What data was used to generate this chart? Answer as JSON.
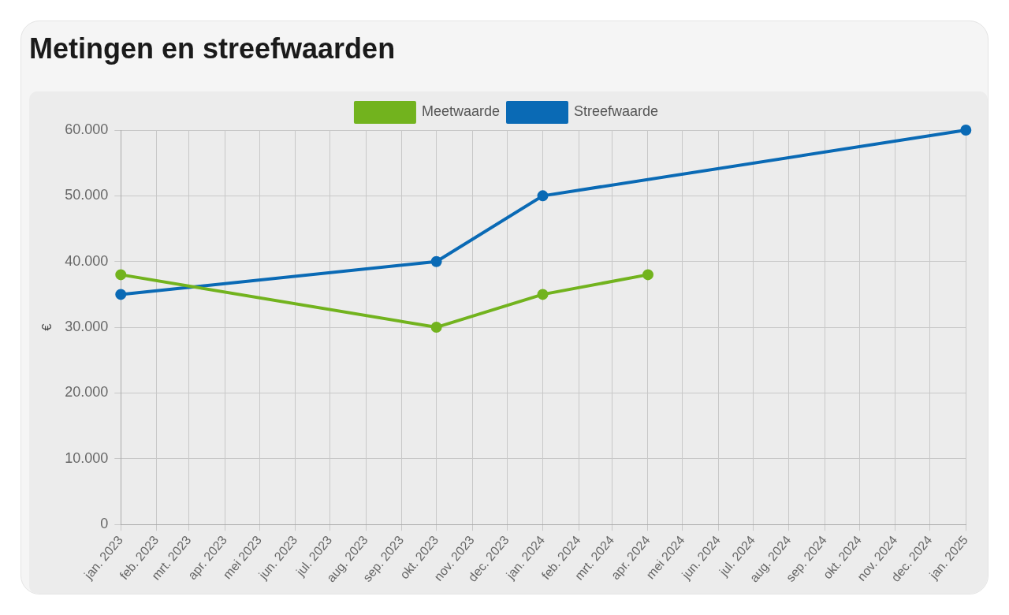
{
  "chart_data": {
    "type": "line",
    "title": "Metingen en streefwaarden",
    "ylabel": "€",
    "series": [
      {
        "name": "Meetwaarde",
        "color": "#72b31e",
        "x": [
          "2023-01",
          "2023-10",
          "2024-01",
          "2024-04"
        ],
        "values": [
          38000,
          30000,
          35000,
          38000
        ]
      },
      {
        "name": "Streefwaarde",
        "color": "#0a6ab5",
        "x": [
          "2023-01",
          "2023-10",
          "2024-01",
          "2025-01"
        ],
        "values": [
          35000,
          40000,
          50000,
          60000
        ]
      }
    ],
    "xlim": [
      "2023-01",
      "2025-01"
    ],
    "xticks": [
      {
        "value": "2023-01",
        "label": "jan. 2023"
      },
      {
        "value": "2023-02",
        "label": "feb. 2023"
      },
      {
        "value": "2023-03",
        "label": "mrt. 2023"
      },
      {
        "value": "2023-04",
        "label": "apr. 2023"
      },
      {
        "value": "2023-05",
        "label": "mei 2023"
      },
      {
        "value": "2023-06",
        "label": "jun. 2023"
      },
      {
        "value": "2023-07",
        "label": "jul. 2023"
      },
      {
        "value": "2023-08",
        "label": "aug. 2023"
      },
      {
        "value": "2023-09",
        "label": "sep. 2023"
      },
      {
        "value": "2023-10",
        "label": "okt. 2023"
      },
      {
        "value": "2023-11",
        "label": "nov. 2023"
      },
      {
        "value": "2023-12",
        "label": "dec. 2023"
      },
      {
        "value": "2024-01",
        "label": "jan. 2024"
      },
      {
        "value": "2024-02",
        "label": "feb. 2024"
      },
      {
        "value": "2024-03",
        "label": "mrt. 2024"
      },
      {
        "value": "2024-04",
        "label": "apr. 2024"
      },
      {
        "value": "2024-05",
        "label": "mei 2024"
      },
      {
        "value": "2024-06",
        "label": "jun. 2024"
      },
      {
        "value": "2024-07",
        "label": "jul. 2024"
      },
      {
        "value": "2024-08",
        "label": "aug. 2024"
      },
      {
        "value": "2024-09",
        "label": "sep. 2024"
      },
      {
        "value": "2024-10",
        "label": "okt. 2024"
      },
      {
        "value": "2024-11",
        "label": "nov. 2024"
      },
      {
        "value": "2024-12",
        "label": "dec. 2024"
      },
      {
        "value": "2025-01",
        "label": "jan. 2025"
      }
    ],
    "ylim": [
      0,
      60000
    ],
    "yticks": [
      0,
      {
        "value": 10000,
        "label": "10.000"
      },
      {
        "value": 20000,
        "label": "20.000"
      },
      {
        "value": 30000,
        "label": "30.000"
      },
      {
        "value": 40000,
        "label": "40.000"
      },
      {
        "value": 50000,
        "label": "50.000"
      },
      {
        "value": 60000,
        "label": "60.000"
      }
    ],
    "grid": true,
    "legend": "top",
    "marker": "circle",
    "line_style": "solid"
  }
}
